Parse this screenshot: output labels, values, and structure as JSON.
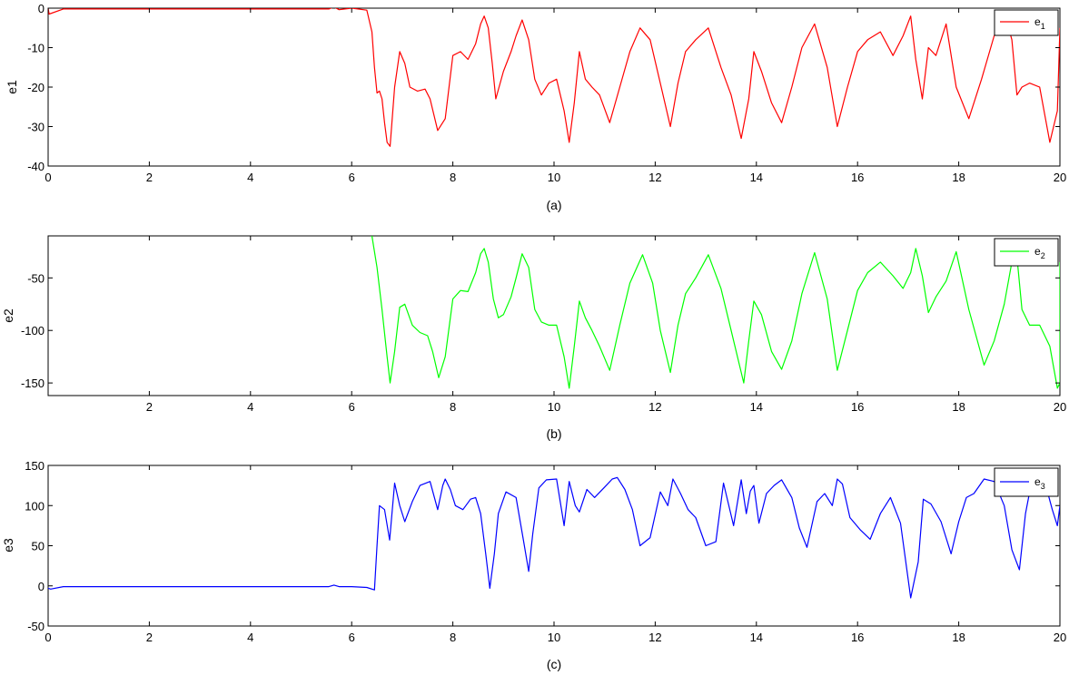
{
  "chart_data": [
    {
      "type": "line",
      "caption": "(a)",
      "xlabel": "",
      "ylabel": "e1",
      "xlim": [
        0,
        20
      ],
      "ylim": [
        -40,
        0
      ],
      "xticks": [
        0,
        2,
        4,
        6,
        8,
        10,
        12,
        14,
        16,
        18,
        20
      ],
      "xtick_labels": [
        "0",
        "2",
        "4",
        "6",
        "8",
        "10",
        "12",
        "14",
        "16",
        "18",
        "20"
      ],
      "yticks": [
        0,
        -10,
        -20,
        -30,
        -40
      ],
      "ytick_labels": [
        "0",
        "-10",
        "-20",
        "-30",
        "-40"
      ],
      "grid": false,
      "legend_position": "top-right",
      "series": [
        {
          "name": "e",
          "name_sub": "1",
          "color": "#ff0000",
          "x": [
            0,
            0.02,
            0.3,
            1,
            2,
            3,
            4,
            5,
            5.55,
            5.65,
            5.75,
            6,
            6.3,
            6.4,
            6.45,
            6.5,
            6.55,
            6.6,
            6.65,
            6.7,
            6.76,
            6.85,
            6.95,
            7.05,
            7.15,
            7.3,
            7.45,
            7.55,
            7.7,
            7.85,
            8.0,
            8.15,
            8.3,
            8.45,
            8.55,
            8.62,
            8.7,
            8.78,
            8.85,
            9.0,
            9.15,
            9.25,
            9.37,
            9.5,
            9.62,
            9.75,
            9.9,
            10.05,
            10.2,
            10.3,
            10.4,
            10.5,
            10.62,
            10.75,
            10.9,
            11.1,
            11.3,
            11.5,
            11.7,
            11.9,
            12.1,
            12.3,
            12.45,
            12.6,
            12.8,
            13.05,
            13.3,
            13.5,
            13.7,
            13.85,
            13.95,
            14.1,
            14.3,
            14.5,
            14.7,
            14.9,
            15.15,
            15.4,
            15.6,
            15.8,
            16.0,
            16.2,
            16.45,
            16.7,
            16.9,
            17.05,
            17.15,
            17.28,
            17.4,
            17.55,
            17.75,
            17.95,
            18.2,
            18.45,
            18.7,
            18.9,
            19.05,
            19.15,
            19.25,
            19.4,
            19.6,
            19.8,
            19.95,
            20.0
          ],
          "y": [
            0,
            -1.5,
            -0.2,
            -0.2,
            -0.2,
            -0.2,
            -0.2,
            -0.2,
            -0.2,
            0.3,
            -0.4,
            0,
            -0.5,
            -6,
            -15,
            -21.5,
            -21,
            -23,
            -29,
            -34,
            -35,
            -20,
            -11,
            -14,
            -20,
            -21,
            -20.5,
            -23,
            -31,
            -28,
            -12,
            -11,
            -13,
            -9,
            -4,
            -2,
            -5,
            -14,
            -23,
            -16,
            -11,
            -7,
            -3,
            -8,
            -18,
            -22,
            -19,
            -18,
            -26,
            -34,
            -24,
            -11,
            -18,
            -20,
            -22,
            -29,
            -20,
            -11,
            -5,
            -8,
            -19,
            -30,
            -19,
            -11,
            -8,
            -5,
            -15,
            -22,
            -33,
            -23,
            -11,
            -16,
            -24,
            -29,
            -20,
            -10,
            -4,
            -15,
            -30,
            -20,
            -11,
            -8,
            -6,
            -12,
            -7,
            -2,
            -13,
            -23,
            -10,
            -12,
            -4,
            -20,
            -28,
            -18,
            -7,
            -1,
            -8,
            -22,
            -20,
            -19,
            -20,
            -34,
            -26,
            -5
          ]
        }
      ]
    },
    {
      "type": "line",
      "caption": "(b)",
      "xlabel": "",
      "ylabel": "e2",
      "xlim": [
        0,
        20
      ],
      "ylim": [
        -162,
        -10
      ],
      "xticks": [
        2,
        4,
        6,
        8,
        10,
        12,
        14,
        16,
        18,
        20
      ],
      "xtick_labels": [
        "2",
        "4",
        "6",
        "8",
        "10",
        "12",
        "14",
        "16",
        "18",
        "20"
      ],
      "yticks": [
        -50,
        -100,
        -150
      ],
      "ytick_labels": [
        "-50",
        "-100",
        "-150"
      ],
      "grid": false,
      "legend_position": "top-right",
      "series": [
        {
          "name": "e",
          "name_sub": "2",
          "color": "#00ff00",
          "x": [
            6.4,
            6.5,
            6.6,
            6.7,
            6.76,
            6.85,
            6.95,
            7.05,
            7.2,
            7.35,
            7.5,
            7.6,
            7.72,
            7.85,
            8.0,
            8.15,
            8.3,
            8.45,
            8.55,
            8.62,
            8.7,
            8.8,
            8.9,
            9.0,
            9.15,
            9.25,
            9.37,
            9.5,
            9.62,
            9.75,
            9.9,
            10.05,
            10.2,
            10.3,
            10.4,
            10.5,
            10.62,
            10.75,
            10.9,
            11.1,
            11.3,
            11.5,
            11.75,
            11.95,
            12.1,
            12.3,
            12.45,
            12.6,
            12.8,
            13.05,
            13.3,
            13.5,
            13.75,
            13.85,
            13.95,
            14.1,
            14.3,
            14.5,
            14.7,
            14.9,
            15.15,
            15.4,
            15.6,
            15.8,
            16.0,
            16.2,
            16.45,
            16.7,
            16.9,
            17.05,
            17.15,
            17.28,
            17.4,
            17.55,
            17.75,
            17.95,
            18.2,
            18.5,
            18.7,
            18.9,
            19.05,
            19.15,
            19.25,
            19.4,
            19.6,
            19.8,
            19.95,
            20.0,
            20.0
          ],
          "y": [
            -10,
            -40,
            -80,
            -125,
            -150,
            -120,
            -78,
            -75,
            -95,
            -102,
            -105,
            -120,
            -145,
            -125,
            -70,
            -62,
            -63,
            -45,
            -27,
            -22,
            -35,
            -70,
            -88,
            -85,
            -68,
            -50,
            -27,
            -40,
            -80,
            -92,
            -95,
            -95,
            -125,
            -155,
            -115,
            -72,
            -88,
            -100,
            -115,
            -138,
            -95,
            -55,
            -28,
            -55,
            -100,
            -140,
            -95,
            -65,
            -50,
            -28,
            -60,
            -100,
            -150,
            -110,
            -72,
            -85,
            -120,
            -137,
            -110,
            -65,
            -26,
            -70,
            -138,
            -100,
            -62,
            -45,
            -35,
            -48,
            -60,
            -45,
            -22,
            -48,
            -83,
            -68,
            -53,
            -25,
            -80,
            -133,
            -110,
            -75,
            -35,
            -30,
            -80,
            -95,
            -95,
            -115,
            -155,
            -150,
            -35
          ]
        }
      ]
    },
    {
      "type": "line",
      "caption": "(c)",
      "xlabel": "",
      "ylabel": "e3",
      "xlim": [
        0,
        20
      ],
      "ylim": [
        -50,
        150
      ],
      "xticks": [
        0,
        2,
        4,
        6,
        8,
        10,
        12,
        14,
        16,
        18,
        20
      ],
      "xtick_labels": [
        "0",
        "2",
        "4",
        "6",
        "8",
        "10",
        "12",
        "14",
        "16",
        "18",
        "20"
      ],
      "yticks": [
        150,
        100,
        50,
        0,
        -50
      ],
      "ytick_labels": [
        "150",
        "100",
        "50",
        "0",
        "-50"
      ],
      "grid": false,
      "legend_position": "top-right",
      "series": [
        {
          "name": "e",
          "name_sub": "3",
          "color": "#0000ff",
          "x": [
            0,
            0.05,
            0.3,
            1,
            2,
            3,
            4,
            5,
            5.55,
            5.65,
            5.75,
            6,
            6.3,
            6.45,
            6.5,
            6.55,
            6.65,
            6.75,
            6.85,
            6.95,
            7.05,
            7.2,
            7.35,
            7.55,
            7.7,
            7.8,
            7.85,
            7.95,
            8.05,
            8.2,
            8.35,
            8.45,
            8.55,
            8.65,
            8.73,
            8.82,
            8.9,
            9.05,
            9.25,
            9.4,
            9.5,
            9.58,
            9.7,
            9.85,
            10.05,
            10.2,
            10.3,
            10.42,
            10.5,
            10.65,
            10.8,
            11.0,
            11.15,
            11.25,
            11.4,
            11.55,
            11.7,
            11.9,
            12.1,
            12.25,
            12.35,
            12.5,
            12.65,
            12.8,
            13.0,
            13.2,
            13.35,
            13.55,
            13.7,
            13.8,
            13.88,
            13.95,
            14.05,
            14.2,
            14.35,
            14.5,
            14.7,
            14.85,
            15.0,
            15.2,
            15.35,
            15.5,
            15.6,
            15.7,
            15.85,
            16.05,
            16.25,
            16.45,
            16.65,
            16.85,
            17.05,
            17.2,
            17.3,
            17.45,
            17.65,
            17.85,
            18.0,
            18.15,
            18.3,
            18.5,
            18.7,
            18.9,
            19.05,
            19.2,
            19.32,
            19.45,
            19.6,
            19.75,
            19.85,
            19.95,
            20.0
          ],
          "y": [
            -3,
            -4,
            -1,
            -1,
            -1,
            -1,
            -1,
            -1,
            -1,
            1,
            -1,
            -1,
            -2,
            -5,
            50,
            100,
            95,
            57,
            128,
            100,
            80,
            105,
            125,
            130,
            95,
            125,
            133,
            120,
            100,
            95,
            108,
            110,
            90,
            40,
            -3,
            40,
            90,
            117,
            110,
            55,
            18,
            65,
            122,
            132,
            133,
            75,
            130,
            100,
            92,
            120,
            110,
            123,
            133,
            135,
            120,
            95,
            50,
            60,
            117,
            100,
            133,
            115,
            95,
            85,
            50,
            55,
            128,
            75,
            132,
            90,
            118,
            125,
            78,
            115,
            125,
            132,
            110,
            72,
            48,
            105,
            115,
            100,
            133,
            127,
            85,
            70,
            58,
            90,
            110,
            78,
            -15,
            30,
            108,
            102,
            80,
            40,
            80,
            110,
            115,
            133,
            130,
            100,
            45,
            20,
            90,
            133,
            128,
            118,
            95,
            75,
            100
          ]
        }
      ]
    }
  ]
}
